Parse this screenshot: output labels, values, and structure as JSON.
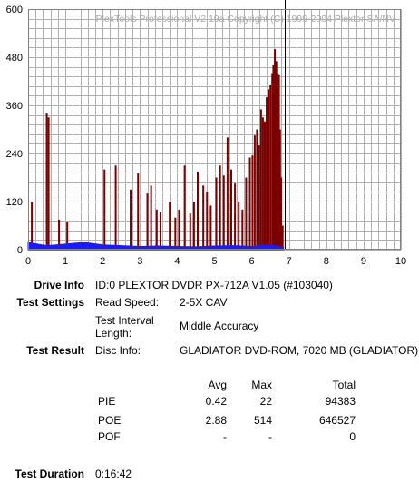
{
  "chart_data": {
    "type": "bar",
    "watermark": "PlexTools Professional V2.19a Copyright (C) 1999-2004 Plextor SA/NV",
    "xlim": [
      0,
      10
    ],
    "ylim": [
      0,
      600
    ],
    "x_ticks": [
      0,
      1,
      2,
      3,
      4,
      5,
      6,
      7,
      8,
      9,
      10
    ],
    "y_ticks": [
      0,
      120,
      240,
      360,
      480,
      600
    ],
    "grid": true,
    "marker_x": 6.88,
    "colors": {
      "poe": "#7a0000",
      "pie": "#1a1aff",
      "grid": "#b0b0b0",
      "marker": "#000000"
    },
    "series": [
      {
        "name": "POE",
        "x": [
          0.1,
          0.5,
          0.55,
          0.83,
          1.05,
          2.05,
          2.35,
          2.75,
          2.95,
          3.2,
          3.3,
          3.45,
          3.55,
          3.8,
          3.95,
          4.05,
          4.2,
          4.35,
          4.45,
          4.55,
          4.7,
          4.8,
          4.9,
          5.05,
          5.15,
          5.25,
          5.35,
          5.45,
          5.55,
          5.65,
          5.75,
          5.85,
          5.95,
          6.02,
          6.08,
          6.14,
          6.2,
          6.25,
          6.3,
          6.35,
          6.4,
          6.45,
          6.5,
          6.55,
          6.58,
          6.62,
          6.66,
          6.7,
          6.73,
          6.76,
          6.79,
          6.83
        ],
        "y": [
          120,
          340,
          330,
          75,
          70,
          200,
          210,
          150,
          190,
          140,
          160,
          100,
          95,
          120,
          80,
          100,
          210,
          90,
          120,
          195,
          160,
          145,
          110,
          180,
          210,
          185,
          280,
          200,
          165,
          120,
          100,
          180,
          230,
          235,
          285,
          300,
          260,
          350,
          330,
          320,
          380,
          400,
          410,
          440,
          460,
          500,
          470,
          440,
          435,
          300,
          180,
          60
        ]
      },
      {
        "name": "PIE",
        "x": [
          0,
          0.5,
          1,
          1.5,
          2,
          2.5,
          3,
          3.5,
          4,
          4.5,
          5,
          5.5,
          6,
          6.5,
          6.85
        ],
        "y": [
          18,
          10,
          14,
          18,
          12,
          10,
          8,
          9,
          8,
          7,
          9,
          10,
          8,
          12,
          6
        ]
      }
    ]
  },
  "drive": {
    "label": "Drive Info",
    "value": "ID:0 PLEXTOR DVDR PX-712A V1.05 (#103040)"
  },
  "settings": {
    "label": "Test Settings",
    "read_speed_label": "Read Speed:",
    "read_speed_value": "2-5X CAV",
    "interval_label_1": "Test Interval",
    "interval_label_2": "Length:",
    "interval_value": "Middle Accuracy"
  },
  "result": {
    "label": "Test Result",
    "disc_label": "Disc Info:",
    "disc_value": "GLADIATOR DVD-ROM, 7020 MB (GLADIATOR)",
    "headers": {
      "avg": "Avg",
      "max": "Max",
      "total": "Total"
    },
    "rows": [
      {
        "name": "PIE",
        "avg": "0.42",
        "max": "22",
        "total": "94383"
      },
      {
        "name": "POE",
        "avg": "2.88",
        "max": "514",
        "total": "646527"
      },
      {
        "name": "POF",
        "avg": "-",
        "max": "-",
        "total": "0"
      }
    ]
  },
  "duration": {
    "label": "Test Duration",
    "value": "0:16:42"
  }
}
